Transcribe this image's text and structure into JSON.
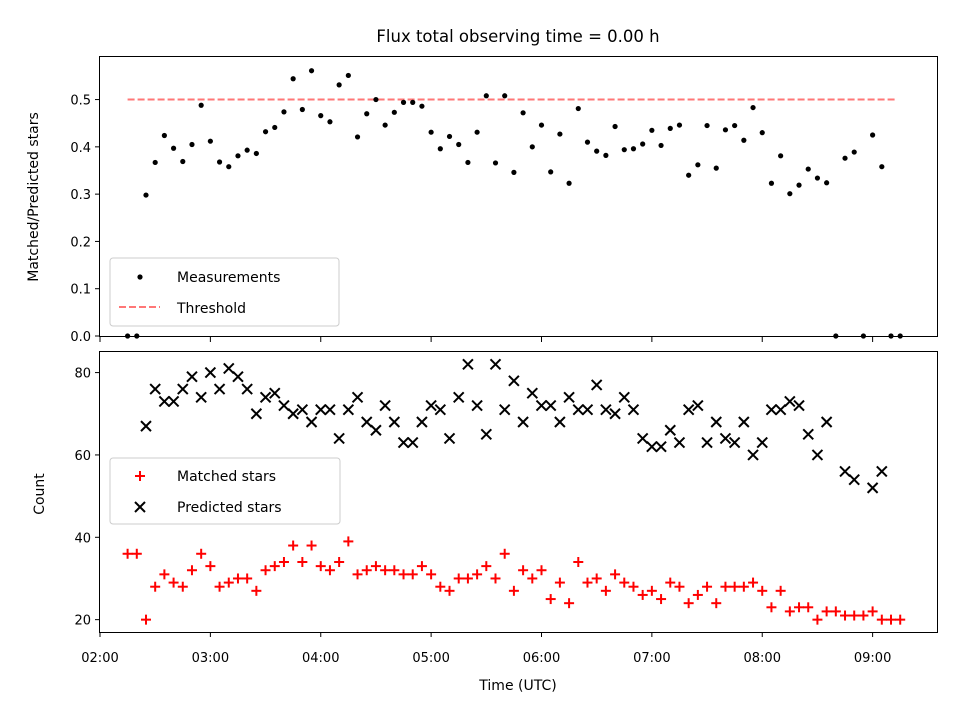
{
  "chart_data": [
    {
      "type": "scatter",
      "title": "Flux total observing time = 0.00 h",
      "xlabel": "",
      "ylabel": "Matched/Predicted stars",
      "xlim": [
        "02:00",
        "09:35"
      ],
      "ylim": [
        0,
        0.59
      ],
      "yticks": [
        "0.0",
        "0.1",
        "0.2",
        "0.3",
        "0.4",
        "0.5"
      ],
      "legend_position": "lower-left",
      "series": [
        {
          "name": "Measurements",
          "marker": "dot",
          "color": "#000000",
          "points": [
            [
              "02:15",
              0.0
            ],
            [
              "02:20",
              0.0
            ],
            [
              "02:25",
              0.298
            ],
            [
              "02:30",
              0.367
            ],
            [
              "02:35",
              0.424
            ],
            [
              "02:40",
              0.397
            ],
            [
              "02:45",
              0.369
            ],
            [
              "02:50",
              0.405
            ],
            [
              "02:55",
              0.488
            ],
            [
              "03:00",
              0.412
            ],
            [
              "03:05",
              0.368
            ],
            [
              "03:10",
              0.358
            ],
            [
              "03:15",
              0.381
            ],
            [
              "03:20",
              0.393
            ],
            [
              "03:25",
              0.386
            ],
            [
              "03:30",
              0.432
            ],
            [
              "03:35",
              0.441
            ],
            [
              "03:40",
              0.474
            ],
            [
              "03:45",
              0.544
            ],
            [
              "03:50",
              0.479
            ],
            [
              "03:55",
              0.561
            ],
            [
              "04:00",
              0.466
            ],
            [
              "04:05",
              0.453
            ],
            [
              "04:10",
              0.531
            ],
            [
              "04:15",
              0.551
            ],
            [
              "04:20",
              0.421
            ],
            [
              "04:25",
              0.47
            ],
            [
              "04:30",
              0.5
            ],
            [
              "04:35",
              0.446
            ],
            [
              "04:40",
              0.473
            ],
            [
              "04:45",
              0.494
            ],
            [
              "04:50",
              0.494
            ],
            [
              "04:55",
              0.486
            ],
            [
              "05:00",
              0.431
            ],
            [
              "05:05",
              0.396
            ],
            [
              "05:10",
              0.422
            ],
            [
              "05:15",
              0.405
            ],
            [
              "05:20",
              0.367
            ],
            [
              "05:25",
              0.431
            ],
            [
              "05:30",
              0.508
            ],
            [
              "05:35",
              0.366
            ],
            [
              "05:40",
              0.508
            ],
            [
              "05:45",
              0.346
            ],
            [
              "05:50",
              0.472
            ],
            [
              "05:55",
              0.4
            ],
            [
              "06:00",
              0.446
            ],
            [
              "06:05",
              0.347
            ],
            [
              "06:10",
              0.427
            ],
            [
              "06:15",
              0.323
            ],
            [
              "06:20",
              0.481
            ],
            [
              "06:25",
              0.41
            ],
            [
              "06:30",
              0.391
            ],
            [
              "06:35",
              0.382
            ],
            [
              "06:40",
              0.443
            ],
            [
              "06:45",
              0.394
            ],
            [
              "06:50",
              0.396
            ],
            [
              "06:55",
              0.406
            ],
            [
              "07:00",
              0.435
            ],
            [
              "07:05",
              0.403
            ],
            [
              "07:10",
              0.439
            ],
            [
              "07:15",
              0.446
            ],
            [
              "07:20",
              0.34
            ],
            [
              "07:25",
              0.362
            ],
            [
              "07:30",
              0.445
            ],
            [
              "07:35",
              0.355
            ],
            [
              "07:40",
              0.436
            ],
            [
              "07:45",
              0.445
            ],
            [
              "07:50",
              0.414
            ],
            [
              "07:55",
              0.483
            ],
            [
              "08:00",
              0.43
            ],
            [
              "08:05",
              0.323
            ],
            [
              "08:10",
              0.381
            ],
            [
              "08:15",
              0.301
            ],
            [
              "08:20",
              0.319
            ],
            [
              "08:25",
              0.353
            ],
            [
              "08:30",
              0.334
            ],
            [
              "08:35",
              0.324
            ],
            [
              "08:40",
              0.0
            ],
            [
              "08:45",
              0.376
            ],
            [
              "08:50",
              0.389
            ],
            [
              "08:55",
              0.0
            ],
            [
              "09:00",
              0.425
            ],
            [
              "09:05",
              0.358
            ],
            [
              "09:10",
              0.0
            ],
            [
              "09:15",
              0.0
            ]
          ]
        },
        {
          "name": "Threshold",
          "type": "line",
          "style": "dashed",
          "color": "#ff7777",
          "points": [
            [
              "02:15",
              0.5
            ],
            [
              "09:12",
              0.5
            ]
          ]
        }
      ]
    },
    {
      "type": "scatter",
      "title": "",
      "xlabel": "Time (UTC)",
      "ylabel": "Count",
      "xlim": [
        "02:00",
        "09:35"
      ],
      "ylim": [
        17,
        85
      ],
      "yticks": [
        "20",
        "40",
        "60",
        "80"
      ],
      "xticks": [
        "02:00",
        "03:00",
        "04:00",
        "05:00",
        "06:00",
        "07:00",
        "08:00",
        "09:00"
      ],
      "legend_position": "center-left",
      "series": [
        {
          "name": "Matched stars",
          "marker": "plus",
          "color": "#ff0000",
          "points": [
            [
              "02:15",
              36
            ],
            [
              "02:20",
              36
            ],
            [
              "02:25",
              20
            ],
            [
              "02:30",
              28
            ],
            [
              "02:35",
              31
            ],
            [
              "02:40",
              29
            ],
            [
              "02:45",
              28
            ],
            [
              "02:50",
              32
            ],
            [
              "02:55",
              36
            ],
            [
              "03:00",
              33
            ],
            [
              "03:05",
              28
            ],
            [
              "03:10",
              29
            ],
            [
              "03:15",
              30
            ],
            [
              "03:20",
              30
            ],
            [
              "03:25",
              27
            ],
            [
              "03:30",
              32
            ],
            [
              "03:35",
              33
            ],
            [
              "03:40",
              34
            ],
            [
              "03:45",
              38
            ],
            [
              "03:50",
              34
            ],
            [
              "03:55",
              38
            ],
            [
              "04:00",
              33
            ],
            [
              "04:05",
              32
            ],
            [
              "04:10",
              34
            ],
            [
              "04:15",
              39
            ],
            [
              "04:20",
              31
            ],
            [
              "04:25",
              32
            ],
            [
              "04:30",
              33
            ],
            [
              "04:35",
              32
            ],
            [
              "04:40",
              32
            ],
            [
              "04:45",
              31
            ],
            [
              "04:50",
              31
            ],
            [
              "04:55",
              33
            ],
            [
              "05:00",
              31
            ],
            [
              "05:05",
              28
            ],
            [
              "05:10",
              27
            ],
            [
              "05:15",
              30
            ],
            [
              "05:20",
              30
            ],
            [
              "05:25",
              31
            ],
            [
              "05:30",
              33
            ],
            [
              "05:35",
              30
            ],
            [
              "05:40",
              36
            ],
            [
              "05:45",
              27
            ],
            [
              "05:50",
              32
            ],
            [
              "05:55",
              30
            ],
            [
              "06:00",
              32
            ],
            [
              "06:05",
              25
            ],
            [
              "06:10",
              29
            ],
            [
              "06:15",
              24
            ],
            [
              "06:20",
              34
            ],
            [
              "06:25",
              29
            ],
            [
              "06:30",
              30
            ],
            [
              "06:35",
              27
            ],
            [
              "06:40",
              31
            ],
            [
              "06:45",
              29
            ],
            [
              "06:50",
              28
            ],
            [
              "06:55",
              26
            ],
            [
              "07:00",
              27
            ],
            [
              "07:05",
              25
            ],
            [
              "07:10",
              29
            ],
            [
              "07:15",
              28
            ],
            [
              "07:20",
              24
            ],
            [
              "07:25",
              26
            ],
            [
              "07:30",
              28
            ],
            [
              "07:35",
              24
            ],
            [
              "07:40",
              28
            ],
            [
              "07:45",
              28
            ],
            [
              "07:50",
              28
            ],
            [
              "07:55",
              29
            ],
            [
              "08:00",
              27
            ],
            [
              "08:05",
              23
            ],
            [
              "08:10",
              27
            ],
            [
              "08:15",
              22
            ],
            [
              "08:20",
              23
            ],
            [
              "08:25",
              23
            ],
            [
              "08:30",
              20
            ],
            [
              "08:35",
              22
            ],
            [
              "08:40",
              22
            ],
            [
              "08:45",
              21
            ],
            [
              "08:50",
              21
            ],
            [
              "08:55",
              21
            ],
            [
              "09:00",
              22
            ],
            [
              "09:05",
              20
            ],
            [
              "09:10",
              20
            ],
            [
              "09:15",
              20
            ]
          ]
        },
        {
          "name": "Predicted stars",
          "marker": "x",
          "color": "#000000",
          "points": [
            [
              "02:25",
              67
            ],
            [
              "02:30",
              76
            ],
            [
              "02:35",
              73
            ],
            [
              "02:40",
              73
            ],
            [
              "02:45",
              76
            ],
            [
              "02:50",
              79
            ],
            [
              "02:55",
              74
            ],
            [
              "03:00",
              80
            ],
            [
              "03:05",
              76
            ],
            [
              "03:10",
              81
            ],
            [
              "03:15",
              79
            ],
            [
              "03:20",
              76
            ],
            [
              "03:25",
              70
            ],
            [
              "03:30",
              74
            ],
            [
              "03:35",
              75
            ],
            [
              "03:40",
              72
            ],
            [
              "03:45",
              70
            ],
            [
              "03:50",
              71
            ],
            [
              "03:55",
              68
            ],
            [
              "04:00",
              71
            ],
            [
              "04:05",
              71
            ],
            [
              "04:10",
              64
            ],
            [
              "04:15",
              71
            ],
            [
              "04:20",
              74
            ],
            [
              "04:25",
              68
            ],
            [
              "04:30",
              66
            ],
            [
              "04:35",
              72
            ],
            [
              "04:40",
              68
            ],
            [
              "04:45",
              63
            ],
            [
              "04:50",
              63
            ],
            [
              "04:55",
              68
            ],
            [
              "05:00",
              72
            ],
            [
              "05:05",
              71
            ],
            [
              "05:10",
              64
            ],
            [
              "05:15",
              74
            ],
            [
              "05:20",
              82
            ],
            [
              "05:25",
              72
            ],
            [
              "05:30",
              65
            ],
            [
              "05:35",
              82
            ],
            [
              "05:40",
              71
            ],
            [
              "05:45",
              78
            ],
            [
              "05:50",
              68
            ],
            [
              "05:55",
              75
            ],
            [
              "06:00",
              72
            ],
            [
              "06:05",
              72
            ],
            [
              "06:10",
              68
            ],
            [
              "06:15",
              74
            ],
            [
              "06:20",
              71
            ],
            [
              "06:25",
              71
            ],
            [
              "06:30",
              77
            ],
            [
              "06:35",
              71
            ],
            [
              "06:40",
              70
            ],
            [
              "06:45",
              74
            ],
            [
              "06:50",
              71
            ],
            [
              "06:55",
              64
            ],
            [
              "07:00",
              62
            ],
            [
              "07:05",
              62
            ],
            [
              "07:10",
              66
            ],
            [
              "07:15",
              63
            ],
            [
              "07:20",
              71
            ],
            [
              "07:25",
              72
            ],
            [
              "07:30",
              63
            ],
            [
              "07:35",
              68
            ],
            [
              "07:40",
              64
            ],
            [
              "07:45",
              63
            ],
            [
              "07:50",
              68
            ],
            [
              "07:55",
              60
            ],
            [
              "08:00",
              63
            ],
            [
              "08:05",
              71
            ],
            [
              "08:10",
              71
            ],
            [
              "08:15",
              73
            ],
            [
              "08:20",
              72
            ],
            [
              "08:25",
              65
            ],
            [
              "08:30",
              60
            ],
            [
              "08:35",
              68
            ],
            [
              "08:45",
              56
            ],
            [
              "08:50",
              54
            ],
            [
              "09:00",
              52
            ],
            [
              "09:05",
              56
            ]
          ]
        }
      ]
    }
  ]
}
